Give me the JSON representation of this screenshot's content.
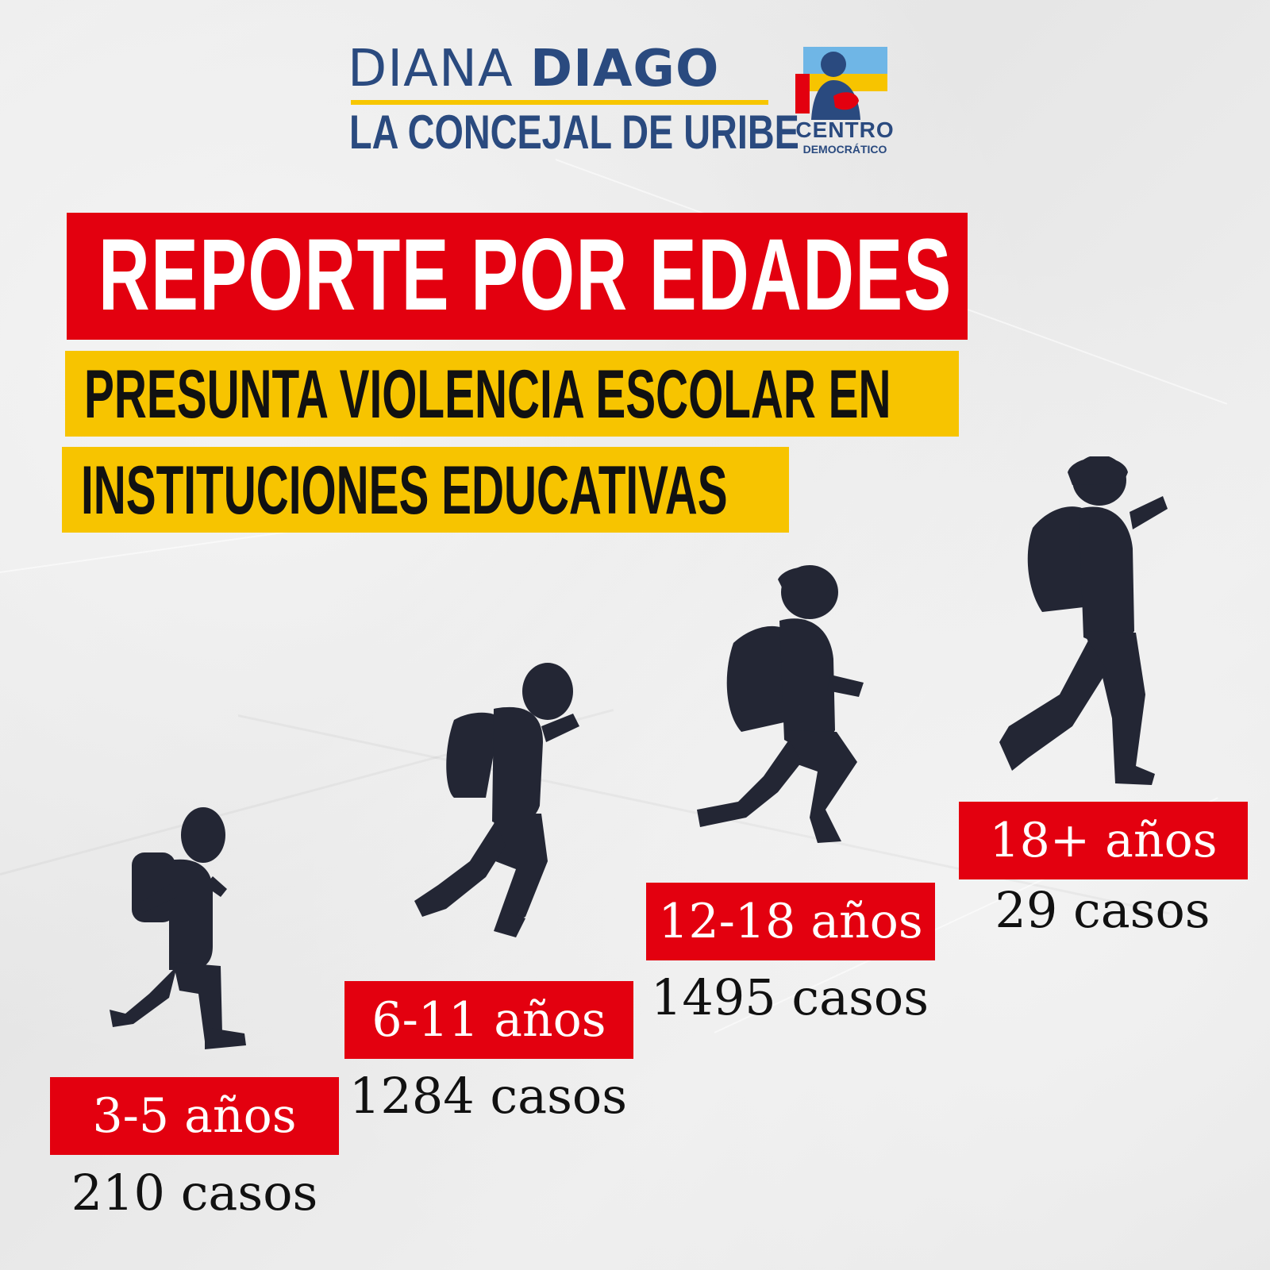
{
  "header": {
    "name_first": "DIANA",
    "name_last": "DIAGO",
    "subtitle": "LA CONCEJAL DE URIBE",
    "party_line1": "CENTRO",
    "party_line2": "DEMOCRÁTICO"
  },
  "title": "REPORTE POR EDADES",
  "subtitle_lines": [
    "PRESUNTA VIOLENCIA ESCOLAR EN",
    "INSTITUCIONES EDUCATIVAS"
  ],
  "groups": [
    {
      "age": "3-5 años",
      "cases": "210 casos"
    },
    {
      "age": "6-11 años",
      "cases": "1284 casos"
    },
    {
      "age": "12-18 años",
      "cases": "1495 casos"
    },
    {
      "age": "18+ años",
      "cases": "29 casos"
    }
  ],
  "colors": {
    "brand_blue": "#2a4a7f",
    "accent_red": "#e3000f",
    "accent_yellow": "#f7c400",
    "silhouette": "#232634"
  },
  "icons": [
    "child-silhouette-icon",
    "party-logo-icon"
  ]
}
